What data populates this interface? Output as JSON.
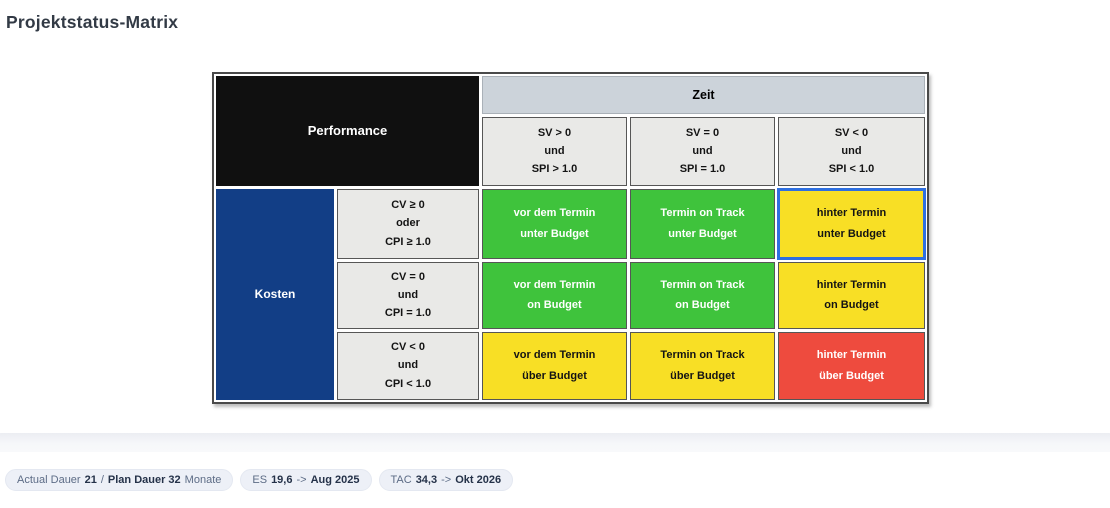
{
  "page": {
    "title": "Projektstatus-Matrix"
  },
  "matrix": {
    "corner_label": "Performance",
    "time_group_label": "Zeit",
    "cost_group_label": "Kosten",
    "col_headers": [
      {
        "line1": "SV > 0",
        "line2": "und",
        "line3": "SPI > 1.0"
      },
      {
        "line1": "SV = 0",
        "line2": "und",
        "line3": "SPI = 1.0"
      },
      {
        "line1": "SV < 0",
        "line2": "und",
        "line3": "SPI < 1.0"
      }
    ],
    "row_headers": [
      {
        "line1": "CV ≥ 0",
        "line2": "oder",
        "line3": "CPI ≥ 1.0"
      },
      {
        "line1": "CV = 0",
        "line2": "und",
        "line3": "CPI = 1.0"
      },
      {
        "line1": "CV < 0",
        "line2": "und",
        "line3": "CPI < 1.0"
      }
    ],
    "cells": [
      {
        "line1": "vor dem Termin",
        "line2": "unter Budget",
        "status": "green",
        "selected": false
      },
      {
        "line1": "Termin on Track",
        "line2": "unter Budget",
        "status": "green",
        "selected": false
      },
      {
        "line1": "hinter Termin",
        "line2": "unter Budget",
        "status": "yellow",
        "selected": true
      },
      {
        "line1": "vor dem Termin",
        "line2": "on Budget",
        "status": "green",
        "selected": false
      },
      {
        "line1": "Termin on Track",
        "line2": "on Budget",
        "status": "green",
        "selected": false
      },
      {
        "line1": "hinter Termin",
        "line2": "on Budget",
        "status": "yellow",
        "selected": false
      },
      {
        "line1": "vor dem Termin",
        "line2": "über Budget",
        "status": "yellow",
        "selected": false
      },
      {
        "line1": "Termin on Track",
        "line2": "über Budget",
        "status": "yellow",
        "selected": false
      },
      {
        "line1": "hinter Termin",
        "line2": "über Budget",
        "status": "red",
        "selected": false
      }
    ],
    "colors": {
      "green": "#3fc33c",
      "yellow": "#f8df25",
      "red": "#ee4b3e",
      "navy": "#123e86",
      "time_header_bg": "#ccd3da",
      "label_gray": "#e9e9e7",
      "corner_black": "#101010",
      "selected_border": "#2e6fe0"
    }
  },
  "footer": {
    "pills": [
      {
        "seg1": "Actual Dauer",
        "seg2": "21",
        "seg3": "/",
        "seg4": "Plan Dauer 32",
        "seg5": "Monate"
      },
      {
        "seg1": "ES",
        "seg2": "19,6",
        "seg3": "->",
        "seg4": "Aug 2025"
      },
      {
        "seg1": "TAC",
        "seg2": "34,3",
        "seg3": "->",
        "seg4": "Okt 2026"
      }
    ]
  }
}
